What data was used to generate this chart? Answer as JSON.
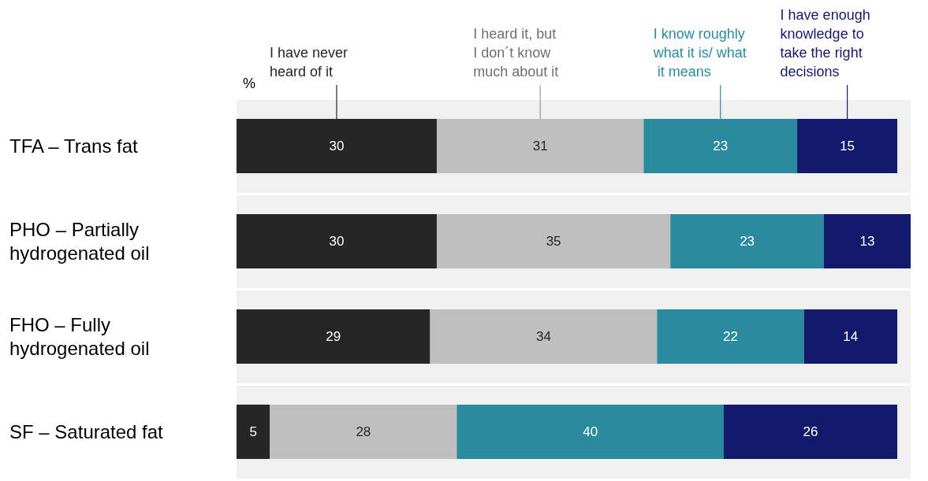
{
  "chart_data": {
    "type": "bar",
    "orientation": "horizontal",
    "stacked": true,
    "data_labels": true,
    "legend": "top",
    "tick_labels": "y",
    "categories": [
      "TFA – Trans fat",
      "PHO – Partially hydrogenated oil",
      "FHO – Fully hydrogenated oil",
      "SF – Saturated fat"
    ],
    "series": [
      {
        "name": "I have never heard of it",
        "color": "#262626",
        "values": [
          30,
          30,
          29,
          5
        ]
      },
      {
        "name": "I heard it, but I don´t know much about it",
        "color": "#bfbfbf",
        "values": [
          31,
          35,
          34,
          28
        ]
      },
      {
        "name": "I know roughly what it is/ what it means",
        "color": "#2a8a9e",
        "values": [
          23,
          23,
          22,
          40
        ]
      },
      {
        "name": "I have enough knowledge to take the right decisions",
        "color": "#141a6b",
        "values": [
          15,
          13,
          14,
          26
        ]
      }
    ],
    "annotations": [
      "%"
    ]
  }
}
